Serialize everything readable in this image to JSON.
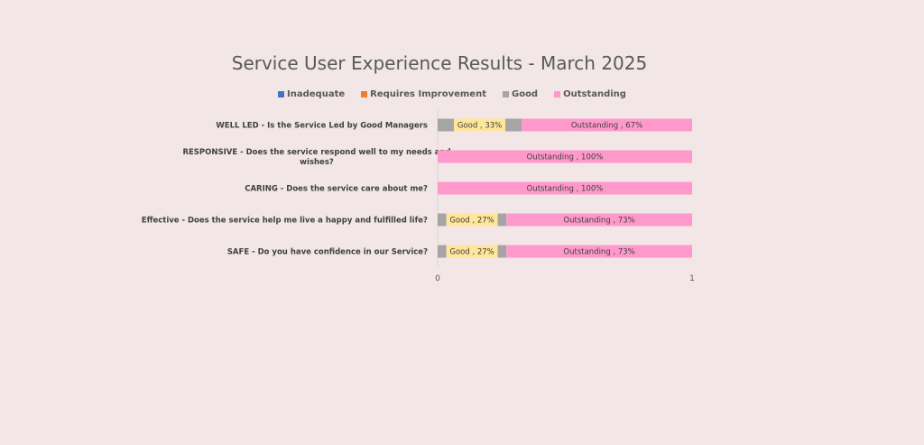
{
  "chart_data": {
    "type": "bar",
    "orientation": "horizontal",
    "stacked": true,
    "title": "Service User Experience Results - March 2025",
    "categories": [
      [
        "WELL LED - Is the Service Led by Good Managers"
      ],
      [
        "RESPONSIVE - Does the service respond well to my needs and",
        "wishes?"
      ],
      [
        "CARING - Does the service care about me?"
      ],
      [
        "Effective - Does the service help me live a happy and fulfilled life?"
      ],
      [
        "SAFE - Do you have confidence in our Service?"
      ]
    ],
    "series": [
      {
        "name": "Inadequate",
        "color": "#4472c4",
        "values": [
          0,
          0,
          0,
          0,
          0
        ]
      },
      {
        "name": "Requires Improvement",
        "color": "#ed7d31",
        "values": [
          0,
          0,
          0,
          0,
          0
        ]
      },
      {
        "name": "Good",
        "color": "#a5a5a5",
        "values": [
          0.33,
          0,
          0,
          0.27,
          0.27
        ]
      },
      {
        "name": "Outstanding",
        "color": "#ff99cc",
        "values": [
          0.67,
          1.0,
          1.0,
          0.73,
          0.73
        ]
      }
    ],
    "data_labels": [
      [
        "",
        "",
        "Good , 33%",
        "Outstanding , 67%"
      ],
      [
        "",
        "",
        "",
        "Outstanding , 100%"
      ],
      [
        "",
        "",
        "",
        "Outstanding , 100%"
      ],
      [
        "",
        "",
        "Good , 27%",
        "Outstanding , 73%"
      ],
      [
        "",
        "",
        "Good , 27%",
        "Outstanding , 73%"
      ]
    ],
    "data_label_fill": "#ffe699",
    "xlim": [
      0,
      1
    ],
    "x_ticks": [
      "0",
      "1"
    ],
    "legend_position": "top",
    "grid": false
  }
}
